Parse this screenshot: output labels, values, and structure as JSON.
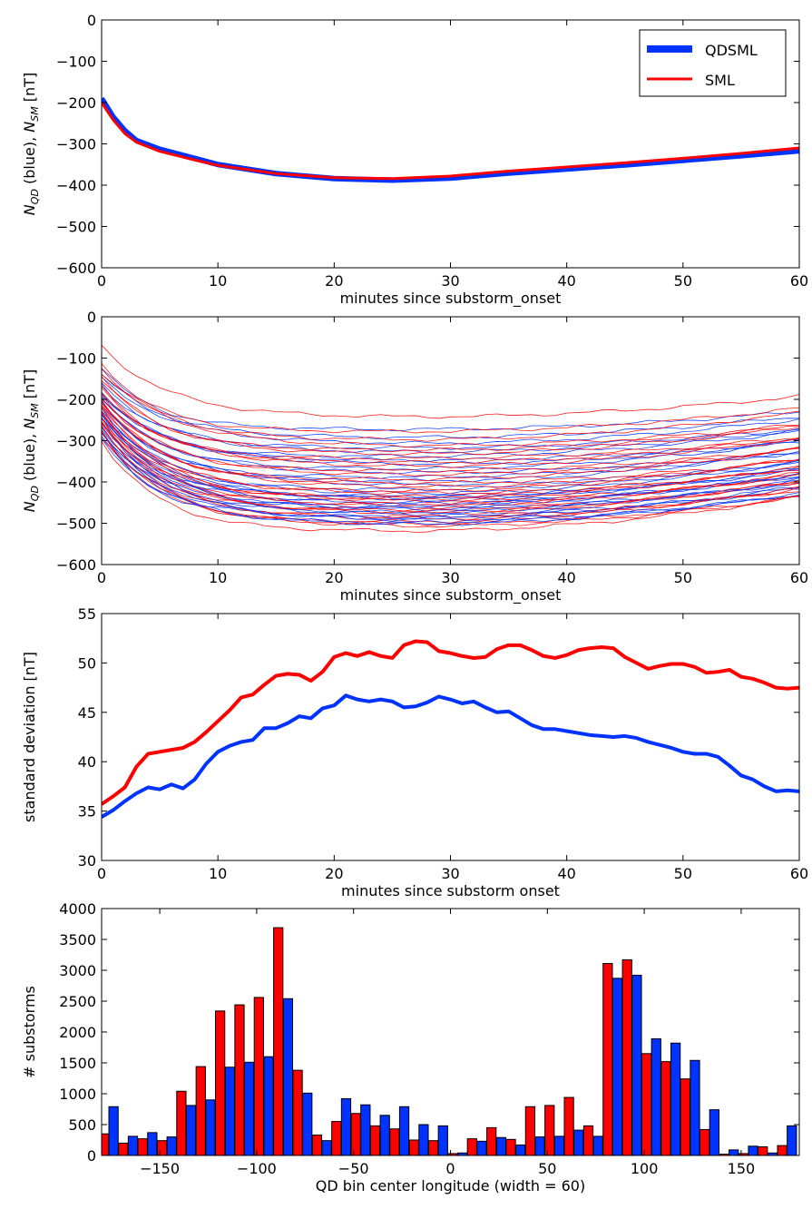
{
  "chart_data": [
    {
      "type": "line",
      "xlabel": "minutes since substorm_onset",
      "ylabel_parts": [
        "N",
        "QD",
        " (blue), ",
        "N",
        "SM",
        " [nT]"
      ],
      "xlim": [
        0,
        60
      ],
      "ylim": [
        -600,
        0
      ],
      "xticks": [
        0,
        10,
        20,
        30,
        40,
        50,
        60
      ],
      "yticks": [
        0,
        -100,
        -200,
        -300,
        -400,
        -500,
        -600
      ],
      "ytick_labels": [
        "0",
        "−100",
        "−200",
        "−300",
        "−400",
        "−500",
        "−600"
      ],
      "legend": {
        "placement": "top-right"
      },
      "series": [
        {
          "name": "QDSML",
          "color": "#0033ff",
          "x": [
            0,
            1,
            2,
            3,
            5,
            8,
            10,
            15,
            20,
            25,
            30,
            35,
            40,
            45,
            50,
            55,
            60
          ],
          "values": [
            -190,
            -235,
            -268,
            -292,
            -313,
            -335,
            -350,
            -372,
            -384,
            -388,
            -383,
            -371,
            -361,
            -351,
            -340,
            -329,
            -317
          ]
        },
        {
          "name": "SML",
          "color": "#ff0000",
          "x": [
            0,
            1,
            2,
            3,
            5,
            8,
            10,
            15,
            20,
            25,
            30,
            35,
            40,
            45,
            50,
            55,
            60
          ],
          "values": [
            -200,
            -242,
            -275,
            -296,
            -318,
            -339,
            -352,
            -372,
            -382,
            -384,
            -378,
            -366,
            -356,
            -346,
            -335,
            -323,
            -310
          ]
        }
      ]
    },
    {
      "type": "line",
      "xlabel": "minutes since substorm_onset",
      "ylabel_parts": [
        "N",
        "QD",
        " (blue), ",
        "N",
        "SM",
        " [nT]"
      ],
      "xlim": [
        0,
        60
      ],
      "ylim": [
        -600,
        0
      ],
      "xticks": [
        0,
        10,
        20,
        30,
        40,
        50,
        60
      ],
      "yticks": [
        0,
        -100,
        -200,
        -300,
        -400,
        -500,
        -600
      ],
      "ytick_labels": [
        "0",
        "−100",
        "−200",
        "−300",
        "−400",
        "−500",
        "−600"
      ],
      "note": "60 individual curves (30 blue N_QD, 30 red N_SM); values shown are the onset level and minimum level of each curve",
      "series_group": {
        "blue": {
          "color": "#0033ff",
          "start": [
            -125,
            -140,
            -150,
            -160,
            -170,
            -180,
            -185,
            -190,
            -195,
            -200,
            -205,
            -210,
            -215,
            -220,
            -225,
            -228,
            -232,
            -236,
            -240,
            -245,
            -250,
            -255,
            -260,
            -265,
            -270,
            -275,
            -280,
            -285,
            -290,
            -300
          ],
          "min": [
            -270,
            -290,
            -305,
            -315,
            -325,
            -335,
            -345,
            -355,
            -365,
            -375,
            -385,
            -395,
            -405,
            -415,
            -425,
            -430,
            -435,
            -440,
            -445,
            -450,
            -455,
            -460,
            -465,
            -470,
            -475,
            -480,
            -485,
            -490,
            -495,
            -500
          ]
        },
        "red": {
          "color": "#ff0000",
          "start": [
            -70,
            -110,
            -125,
            -135,
            -145,
            -155,
            -165,
            -175,
            -185,
            -190,
            -195,
            -200,
            -205,
            -210,
            -215,
            -220,
            -225,
            -230,
            -235,
            -240,
            -245,
            -250,
            -255,
            -260,
            -265,
            -270,
            -275,
            -280,
            -290,
            -300
          ],
          "min": [
            -240,
            -275,
            -295,
            -310,
            -320,
            -330,
            -340,
            -350,
            -360,
            -370,
            -380,
            -390,
            -400,
            -410,
            -418,
            -425,
            -432,
            -438,
            -444,
            -450,
            -456,
            -462,
            -468,
            -474,
            -480,
            -486,
            -492,
            -498,
            -505,
            -515
          ]
        }
      }
    },
    {
      "type": "line",
      "xlabel": "minutes since substorm onset",
      "ylabel": "standard deviation [nT]",
      "xlim": [
        0,
        60
      ],
      "ylim": [
        30,
        55
      ],
      "xticks": [
        0,
        10,
        20,
        30,
        40,
        50,
        60
      ],
      "yticks": [
        30,
        35,
        40,
        45,
        50,
        55
      ],
      "series": [
        {
          "color": "#0033ff",
          "x": [
            0,
            1,
            2,
            3,
            4,
            5,
            6,
            7,
            8,
            9,
            10,
            11,
            12,
            13,
            14,
            15,
            16,
            17,
            18,
            19,
            20,
            21,
            22,
            23,
            24,
            25,
            26,
            27,
            28,
            29,
            30,
            31,
            32,
            33,
            34,
            35,
            36,
            37,
            38,
            39,
            40,
            41,
            42,
            43,
            44,
            45,
            46,
            47,
            48,
            49,
            50,
            51,
            52,
            53,
            54,
            55,
            56,
            57,
            58,
            59,
            60
          ],
          "values": [
            34.4,
            35.1,
            36.0,
            36.8,
            37.4,
            37.2,
            37.7,
            37.3,
            38.2,
            39.8,
            41.0,
            41.6,
            42.0,
            42.2,
            43.4,
            43.4,
            43.9,
            44.6,
            44.4,
            45.4,
            45.7,
            46.7,
            46.3,
            46.1,
            46.3,
            46.1,
            45.5,
            45.6,
            46.0,
            46.6,
            46.3,
            45.9,
            46.1,
            45.5,
            45.0,
            45.1,
            44.4,
            43.7,
            43.3,
            43.3,
            43.1,
            42.9,
            42.7,
            42.6,
            42.5,
            42.6,
            42.4,
            42.0,
            41.7,
            41.4,
            41.0,
            40.8,
            40.8,
            40.5,
            39.6,
            38.6,
            38.2,
            37.5,
            37.0,
            37.1,
            37.0
          ]
        },
        {
          "color": "#ff0000",
          "x": [
            0,
            1,
            2,
            3,
            4,
            5,
            6,
            7,
            8,
            9,
            10,
            11,
            12,
            13,
            14,
            15,
            16,
            17,
            18,
            19,
            20,
            21,
            22,
            23,
            24,
            25,
            26,
            27,
            28,
            29,
            30,
            31,
            32,
            33,
            34,
            35,
            36,
            37,
            38,
            39,
            40,
            41,
            42,
            43,
            44,
            45,
            46,
            47,
            48,
            49,
            50,
            51,
            52,
            53,
            54,
            55,
            56,
            57,
            58,
            59,
            60
          ],
          "values": [
            35.7,
            36.5,
            37.4,
            39.5,
            40.8,
            41.0,
            41.2,
            41.4,
            42.0,
            43.0,
            44.1,
            45.2,
            46.5,
            46.8,
            47.8,
            48.7,
            48.9,
            48.8,
            48.2,
            49.1,
            50.6,
            51.0,
            50.7,
            51.1,
            50.7,
            50.5,
            51.8,
            52.2,
            52.1,
            51.2,
            51.0,
            50.7,
            50.5,
            50.6,
            51.4,
            51.8,
            51.8,
            51.3,
            50.7,
            50.5,
            50.8,
            51.3,
            51.5,
            51.6,
            51.5,
            50.6,
            50.0,
            49.4,
            49.7,
            49.9,
            49.9,
            49.6,
            49.0,
            49.1,
            49.3,
            48.6,
            48.4,
            48.0,
            47.5,
            47.4,
            47.5
          ]
        }
      ]
    },
    {
      "type": "bar",
      "xlabel": "QD bin center longitude (width = 60)",
      "ylabel": "# substorms",
      "xlim": [
        -180,
        180
      ],
      "ylim": [
        0,
        4000
      ],
      "xticks": [
        -150,
        -100,
        -50,
        0,
        50,
        100,
        150
      ],
      "xtick_labels": [
        "−150",
        "−100",
        "−50",
        "0",
        "50",
        "100",
        "150"
      ],
      "yticks": [
        0,
        500,
        1000,
        1500,
        2000,
        2500,
        3000,
        3500,
        4000
      ],
      "categories": [
        -176.25,
        -166.25,
        -156.25,
        -146.25,
        -136.25,
        -126.25,
        -116.25,
        -106.25,
        -96.25,
        -86.25,
        -76.25,
        -66.25,
        -56.25,
        -46.25,
        -36.25,
        -26.25,
        -16.25,
        -6.25,
        3.75,
        13.75,
        23.75,
        33.75,
        43.75,
        53.75,
        63.75,
        73.75,
        83.75,
        93.75,
        103.75,
        113.75,
        123.75,
        133.75,
        143.75,
        153.75,
        163.75,
        173.75
      ],
      "series": [
        {
          "color": "#ff0000",
          "values": [
            350,
            200,
            270,
            240,
            1040,
            1440,
            2340,
            2440,
            2560,
            3690,
            1380,
            330,
            550,
            680,
            480,
            430,
            250,
            240,
            30,
            270,
            450,
            260,
            790,
            810,
            940,
            480,
            3110,
            3170,
            1650,
            1520,
            1240,
            420,
            20,
            30,
            140,
            160
          ]
        },
        {
          "color": "#0033ff",
          "values": [
            790,
            310,
            370,
            300,
            810,
            900,
            1430,
            1510,
            1600,
            2540,
            1010,
            240,
            920,
            820,
            650,
            790,
            500,
            480,
            40,
            230,
            290,
            170,
            300,
            310,
            410,
            310,
            2870,
            2920,
            1890,
            1820,
            1540,
            740,
            90,
            150,
            40,
            480
          ]
        }
      ]
    }
  ]
}
